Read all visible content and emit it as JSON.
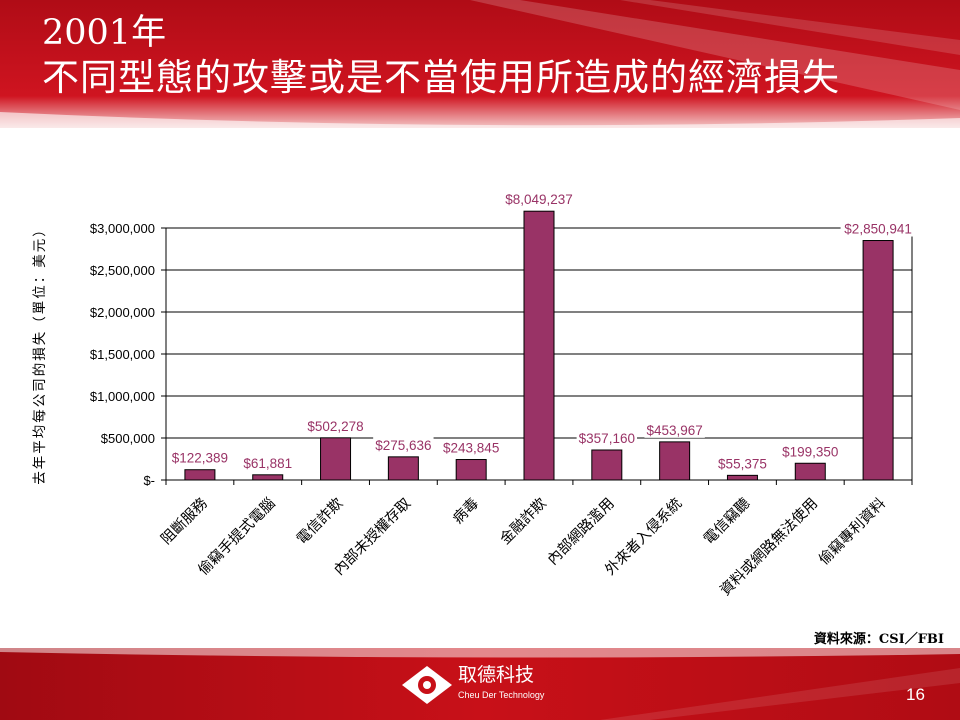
{
  "slide": {
    "title_line1": "2001年",
    "title_line2": "不同型態的攻擊或是不當使用所造成的經濟損失",
    "source_note": "資料來源：CSI／FBI",
    "company_name": "取德科技",
    "company_en": "Cheu Der Technology",
    "page_number": "16",
    "colors": {
      "header": "#c8101c",
      "bar": "#993366",
      "label_text": "#993366"
    }
  },
  "chart_data": {
    "type": "bar",
    "title": "",
    "xlabel": "",
    "ylabel": "去年平均每公司的損失（單位：美元）",
    "ylim": [
      0,
      3200000
    ],
    "yticks": [
      0,
      500000,
      1000000,
      1500000,
      2000000,
      2500000,
      3000000
    ],
    "ytick_labels": [
      "$-",
      "$500,000",
      "$1,000,000",
      "$1,500,000",
      "$2,000,000",
      "$2,500,000",
      "$3,000,000"
    ],
    "grid": true,
    "categories": [
      "阻斷服務",
      "偷竊手提式電腦",
      "電信詐欺",
      "內部未授權存取",
      "病毒",
      "金融詐欺",
      "內部網路濫用",
      "外來者入侵系統",
      "電信竊聽",
      "資料或網路無法使用",
      "偷竊專利資料"
    ],
    "values": [
      122389,
      61881,
      502278,
      275636,
      243845,
      8049237,
      357160,
      453967,
      55375,
      199350,
      2850941
    ],
    "data_labels": [
      "$122,389",
      "$61,881",
      "$502,278",
      "$275,636",
      "$243,845",
      "$8,049,237",
      "$357,160",
      "$453,967",
      "$55,375",
      "$199,350",
      "$2,850,941"
    ]
  }
}
